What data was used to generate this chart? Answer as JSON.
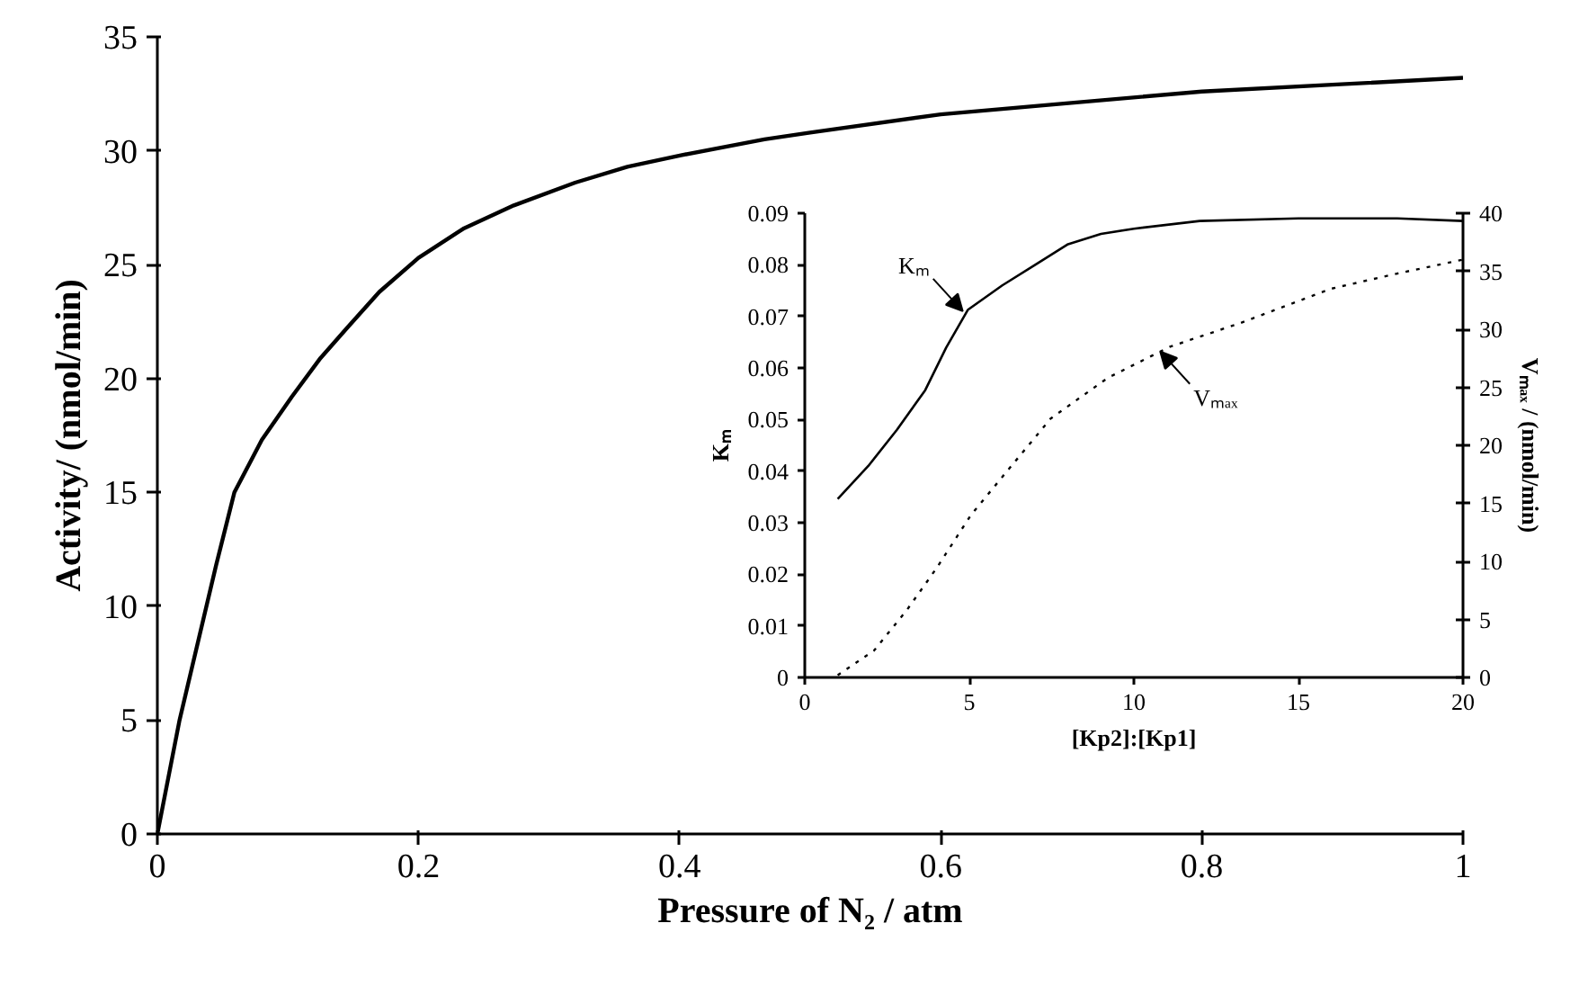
{
  "chart_data": [
    {
      "type": "line",
      "xlabel": "Pressure of N₂ / atm",
      "ylabel": "Activity/ (nmol/min)",
      "xlim": [
        0,
        1
      ],
      "ylim": [
        0,
        35
      ],
      "xticks": [
        0,
        0.2,
        0.4,
        0.6,
        0.8,
        1
      ],
      "yticks": [
        0,
        5,
        10,
        15,
        20,
        25,
        30,
        35
      ],
      "grid": false,
      "line_style": "solid",
      "series": [
        {
          "color": "#000000",
          "x": [
            0,
            0.017,
            0.045,
            0.059,
            0.08,
            0.103,
            0.125,
            0.145,
            0.17,
            0.2,
            0.235,
            0.273,
            0.32,
            0.36,
            0.401,
            0.465,
            0.5,
            0.6,
            0.7,
            0.8,
            0.9,
            1
          ],
          "values": [
            0,
            5.0,
            11.8,
            15.0,
            17.3,
            19.2,
            20.9,
            22.2,
            23.8,
            25.3,
            26.6,
            27.6,
            28.6,
            29.3,
            29.8,
            30.5,
            30.8,
            31.6,
            32.1,
            32.6,
            32.9,
            33.2
          ]
        }
      ]
    },
    {
      "type": "line",
      "xlabel": "[Kp2]:[Kp1]",
      "ylabel": "Kₘ",
      "y2label": "Vₘₐₓ / (nmol/min)",
      "xlim": [
        0,
        20
      ],
      "ylim": [
        0,
        0.09
      ],
      "y2lim": [
        0,
        40
      ],
      "xticks": [
        0,
        5,
        10,
        15,
        20
      ],
      "yticks": [
        0,
        0.01,
        0.02,
        0.03,
        0.04,
        0.05,
        0.06,
        0.07,
        0.08,
        0.09
      ],
      "y2ticks": [
        0,
        5,
        10,
        15,
        20,
        25,
        30,
        35,
        40
      ],
      "grid": false,
      "series": [
        {
          "color": "#000000",
          "line_style": "solid",
          "x": [
            1,
            1.93,
            2.8,
            3.66,
            4.3,
            4.96,
            6,
            7,
            8,
            9,
            10,
            12,
            15,
            18,
            20
          ],
          "values": [
            0.0346,
            0.041,
            0.048,
            0.0557,
            0.064,
            0.0713,
            0.076,
            0.08,
            0.084,
            0.086,
            0.087,
            0.0885,
            0.089,
            0.089,
            0.0885
          ]
        },
        {
          "color": "#000000",
          "line_style": "dotted",
          "axis": "y2",
          "x": [
            1,
            2.1,
            3.1,
            4.0,
            5.05,
            6.27,
            7.47,
            9.2,
            11.1,
            13.2,
            16.0,
            18,
            20
          ],
          "values": [
            0.2,
            2.3,
            5.8,
            9.4,
            14,
            18.2,
            22.3,
            25.8,
            28.5,
            30.5,
            33.5,
            34.8,
            36
          ]
        }
      ],
      "annotations": [
        {
          "text": "Kₘ",
          "x": 4.8,
          "y": 0.071
        },
        {
          "text": "Vₘₐₓ",
          "x": 10.8,
          "y": 0.0632
        }
      ]
    }
  ]
}
